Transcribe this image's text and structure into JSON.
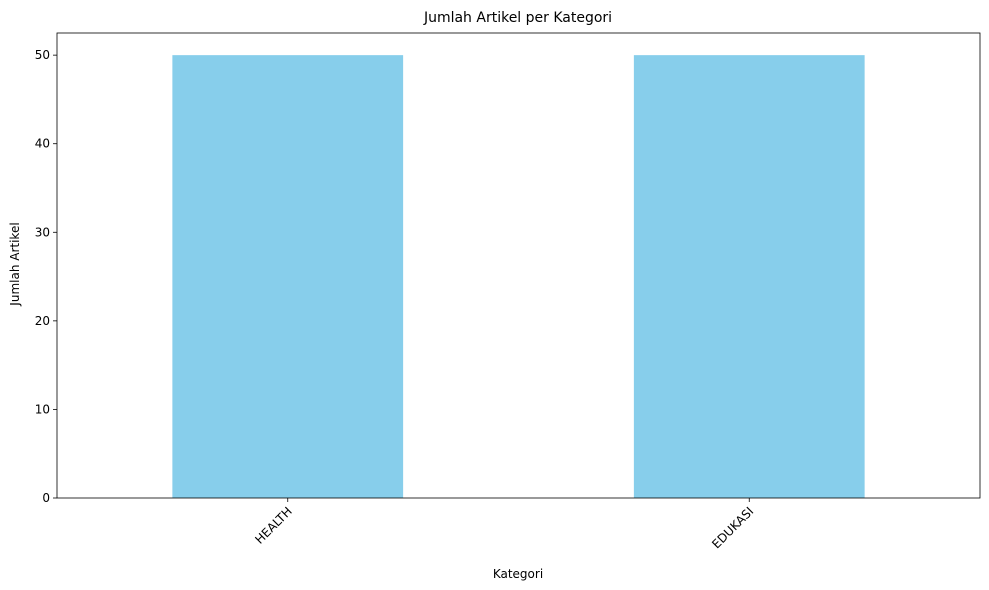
{
  "chart_data": {
    "type": "bar",
    "title": "Jumlah Artikel per Kategori",
    "xlabel": "Kategori",
    "ylabel": "Jumlah Artikel",
    "categories": [
      "HEALTH",
      "EDUKASI"
    ],
    "values": [
      50,
      50
    ],
    "ylim": [
      0,
      52.5
    ],
    "yticks": [
      0,
      10,
      20,
      30,
      40,
      50
    ],
    "bar_color": "#87CEEB",
    "grid": false,
    "legend": "none"
  }
}
